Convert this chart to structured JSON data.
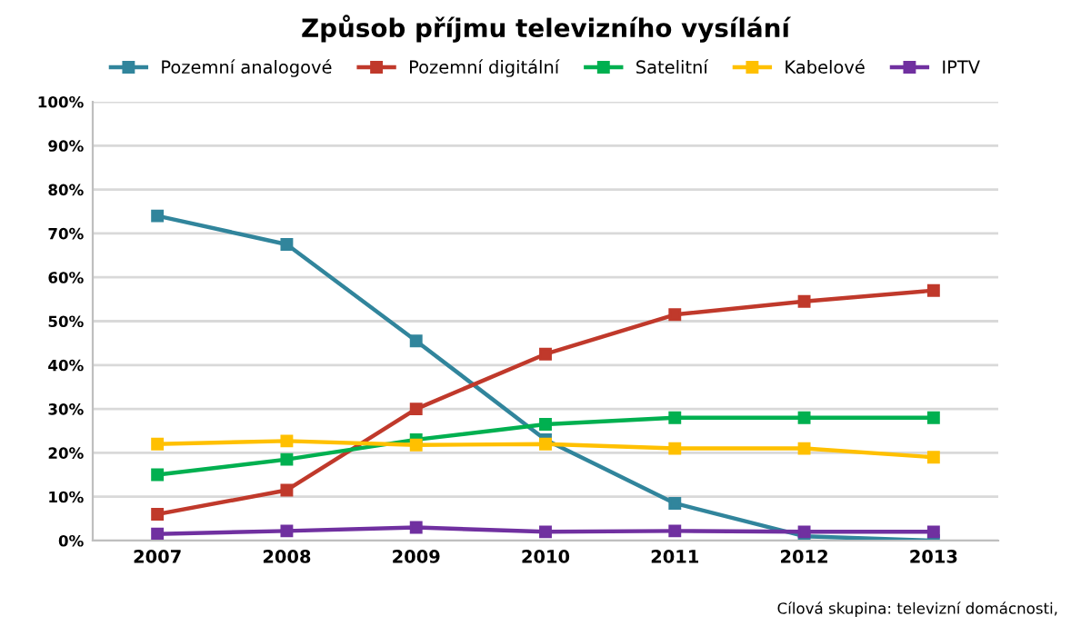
{
  "chart_data": {
    "type": "line",
    "title": "Způsob příjmu televizního vysílání",
    "categories": [
      "2007",
      "2008",
      "2009",
      "2010",
      "2011",
      "2012",
      "2013"
    ],
    "series": [
      {
        "name": "Pozemní analogové",
        "color": "#31859c",
        "values": [
          74,
          67.5,
          45.5,
          23,
          8.5,
          1,
          0
        ]
      },
      {
        "name": "Pozemní digitální",
        "color": "#c0392b",
        "values": [
          6,
          11.5,
          30,
          42.5,
          51.5,
          54.5,
          57
        ]
      },
      {
        "name": "Satelitní",
        "color": "#00b050",
        "values": [
          15,
          18.5,
          23,
          26.5,
          28,
          28,
          28
        ]
      },
      {
        "name": "Kabelové",
        "color": "#ffc000",
        "values": [
          22,
          22.7,
          21.8,
          22,
          21,
          21,
          19
        ]
      },
      {
        "name": "IPTV",
        "color": "#7030a0",
        "values": [
          1.5,
          2.2,
          3,
          2,
          2.2,
          2,
          2
        ]
      }
    ],
    "ylim": [
      0,
      100
    ],
    "yticks": [
      {
        "value": 0,
        "label": "0%"
      },
      {
        "value": 10,
        "label": "10%"
      },
      {
        "value": 20,
        "label": "20%"
      },
      {
        "value": 30,
        "label": "30%"
      },
      {
        "value": 40,
        "label": "40%"
      },
      {
        "value": 50,
        "label": "50%"
      },
      {
        "value": 60,
        "label": "60%"
      },
      {
        "value": 70,
        "label": "70%"
      },
      {
        "value": 80,
        "label": "80%"
      },
      {
        "value": 90,
        "label": "90%"
      },
      {
        "value": 100,
        "label": "100%"
      }
    ],
    "grid": "y",
    "legend": "top",
    "marker": "square",
    "line_style": "solid",
    "annotations": [
      "Cílová skupina: televizní domácnosti,"
    ]
  }
}
